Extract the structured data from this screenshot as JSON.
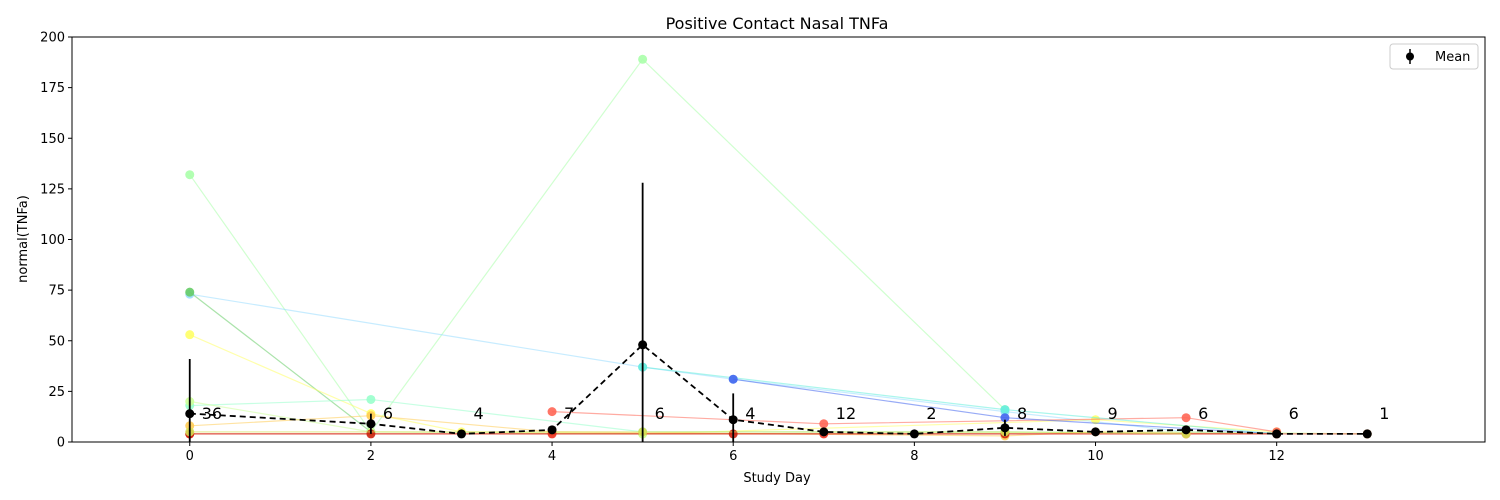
{
  "chart_data": {
    "type": "line",
    "title": "Positive Contact Nasal TNFa",
    "xlabel": "Study Day",
    "ylabel": "normal(TNFa)",
    "xlim": [
      -1.3,
      14.3
    ],
    "ylim": [
      0,
      200
    ],
    "xticks": [
      0,
      2,
      4,
      6,
      8,
      10,
      12
    ],
    "yticks": [
      0,
      25,
      50,
      75,
      100,
      125,
      150,
      175,
      200
    ],
    "grid": false,
    "legend": {
      "position": "top-right",
      "entries": [
        "Mean"
      ]
    },
    "subjects": [
      {
        "color": "#aaffaa",
        "points": [
          [
            0,
            132
          ],
          [
            2,
            5
          ],
          [
            5,
            189
          ],
          [
            9,
            16
          ]
        ]
      },
      {
        "color": "#99ddff",
        "points": [
          [
            0,
            73
          ],
          [
            5,
            37
          ],
          [
            6,
            31
          ],
          [
            9,
            15
          ],
          [
            11,
            5
          ],
          [
            12,
            4
          ]
        ]
      },
      {
        "color": "#66cc66",
        "points": [
          [
            0,
            74
          ],
          [
            2,
            5
          ]
        ]
      },
      {
        "color": "#ffff66",
        "points": [
          [
            0,
            53
          ],
          [
            2,
            14
          ],
          [
            3,
            5
          ],
          [
            5,
            4
          ],
          [
            10,
            11
          ],
          [
            12,
            5
          ]
        ]
      },
      {
        "color": "#99ffcc",
        "points": [
          [
            0,
            18
          ],
          [
            2,
            21
          ],
          [
            5,
            5
          ],
          [
            9,
            5
          ],
          [
            13,
            4
          ]
        ]
      },
      {
        "color": "#ccff99",
        "points": [
          [
            0,
            20
          ],
          [
            2,
            5
          ],
          [
            5,
            4
          ],
          [
            11,
            5
          ],
          [
            13,
            4
          ]
        ]
      },
      {
        "color": "#ff6655",
        "points": [
          [
            4,
            15
          ],
          [
            7,
            9
          ],
          [
            11,
            12
          ],
          [
            12,
            5
          ]
        ]
      },
      {
        "color": "#66eedd",
        "points": [
          [
            5,
            37
          ],
          [
            9,
            16
          ],
          [
            12,
            4
          ]
        ]
      },
      {
        "color": "#4466ee",
        "points": [
          [
            6,
            31
          ],
          [
            9,
            12
          ],
          [
            12,
            4
          ]
        ]
      },
      {
        "color": "#ffcc55",
        "points": [
          [
            0,
            8
          ],
          [
            2,
            13
          ],
          [
            4,
            5
          ],
          [
            9,
            3
          ],
          [
            10,
            5
          ],
          [
            12,
            4
          ]
        ]
      },
      {
        "color": "#ee3322",
        "points": [
          [
            0,
            4
          ],
          [
            4,
            4
          ],
          [
            7,
            4
          ],
          [
            11,
            4
          ],
          [
            13,
            4
          ]
        ]
      },
      {
        "color": "#cc2211",
        "points": [
          [
            0,
            4
          ],
          [
            2,
            4
          ],
          [
            6,
            4
          ],
          [
            9,
            4
          ],
          [
            12,
            4
          ]
        ]
      },
      {
        "color": "#d4e055",
        "points": [
          [
            0,
            5
          ],
          [
            5,
            5
          ],
          [
            9,
            5
          ],
          [
            11,
            4
          ]
        ]
      }
    ],
    "mean": {
      "name": "Mean",
      "x": [
        0,
        2,
        3,
        4,
        5,
        6,
        7,
        8,
        9,
        10,
        11,
        12,
        13
      ],
      "y": [
        14,
        9,
        4,
        6,
        48,
        11,
        5,
        4,
        7,
        5,
        6,
        4,
        4
      ],
      "err": [
        27,
        5,
        1,
        2,
        80,
        13,
        1,
        1,
        4,
        2,
        2,
        1,
        0
      ],
      "n": [
        "36",
        "6",
        "4",
        "7",
        "6",
        "4",
        "12",
        "2",
        "8",
        "9",
        "6",
        "6",
        "1"
      ]
    }
  }
}
